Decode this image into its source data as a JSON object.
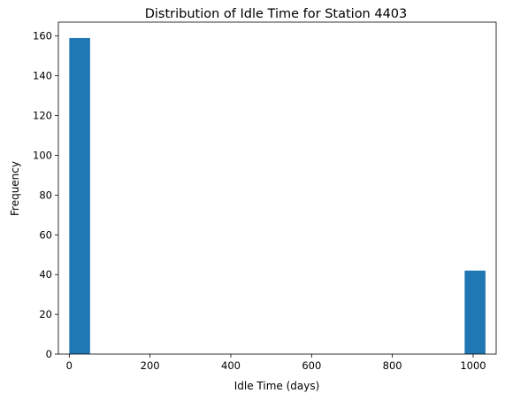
{
  "chart_data": {
    "type": "bar",
    "title": "Distribution of Idle Time for Station 4403",
    "xlabel": "Idle Time (days)",
    "ylabel": "Frequency",
    "xlim": [
      -27,
      1057
    ],
    "ylim": [
      0,
      167
    ],
    "xticks": [
      0,
      200,
      400,
      600,
      800,
      1000
    ],
    "yticks": [
      0,
      20,
      40,
      60,
      80,
      100,
      120,
      140,
      160
    ],
    "bin_width": 51.5,
    "bins": [
      {
        "x0": 0,
        "x1": 51.5,
        "value": 159
      },
      {
        "x0": 979,
        "x1": 1030.5,
        "value": 42
      }
    ],
    "bar_color": "#1f77b4",
    "grid": false
  }
}
